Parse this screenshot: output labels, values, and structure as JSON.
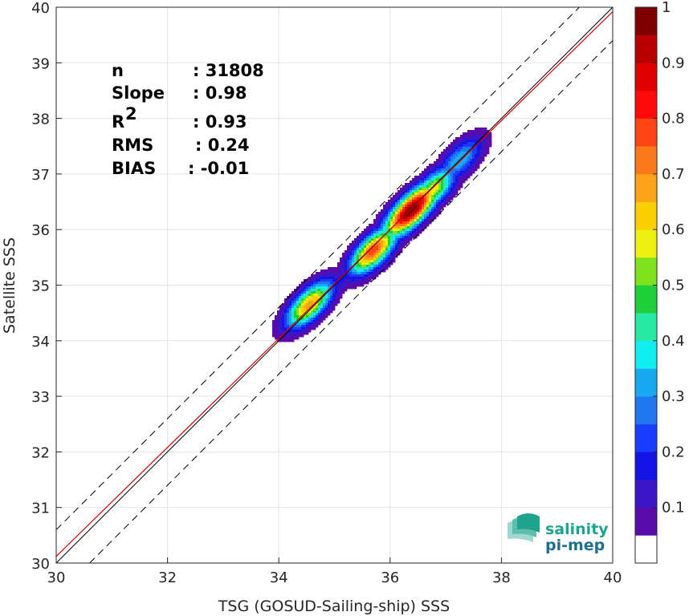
{
  "chart_data": {
    "type": "heatmap",
    "subtype": "density-contour scatter comparison",
    "xlabel": "TSG (GOSUD-Sailing-ship) SSS",
    "ylabel": "Satellite SSS",
    "xlim": [
      30,
      40
    ],
    "ylim": [
      30,
      40
    ],
    "xticks": [
      "30",
      "32",
      "34",
      "36",
      "38",
      "40"
    ],
    "yticks": [
      "30",
      "31",
      "32",
      "33",
      "34",
      "35",
      "36",
      "37",
      "38",
      "39",
      "40"
    ],
    "grid": true,
    "reference_lines": {
      "identity": {
        "slope": 1,
        "intercept": 0,
        "color": "#000000"
      },
      "regression": {
        "slope": 0.98,
        "intercept": 0.72,
        "color": "#d00000"
      },
      "envelope": {
        "offset": 0.6,
        "style": "dashed",
        "color": "#000000"
      }
    },
    "stats": [
      {
        "label": "n",
        "sup": "",
        "value": ": 31808"
      },
      {
        "label": "Slope",
        "sup": "",
        "value": ": 0.98"
      },
      {
        "label": "R",
        "sup": "2",
        "value": ": 0.93"
      },
      {
        "label": "RMS",
        "sup": "",
        "value": ": 0.24"
      },
      {
        "label": "BIAS",
        "sup": "",
        "value": ": -0.01"
      }
    ],
    "density_peaks": [
      {
        "x": 34.55,
        "y": 34.65,
        "density": 0.68
      },
      {
        "x": 35.7,
        "y": 35.62,
        "density": 0.78
      },
      {
        "x": 36.38,
        "y": 36.35,
        "density": 1.0
      },
      {
        "x": 36.75,
        "y": 36.7,
        "density": 0.6
      },
      {
        "x": 37.25,
        "y": 37.25,
        "density": 0.35
      }
    ],
    "colorbar": {
      "range": [
        0,
        1
      ],
      "ticks": [
        "0.1",
        "0.2",
        "0.3",
        "0.4",
        "0.5",
        "0.6",
        "0.7",
        "0.8",
        "0.9",
        "1"
      ],
      "colors": [
        "#ffffff",
        "#5a0aa8",
        "#3a16c8",
        "#1414e6",
        "#1a3cff",
        "#1e78f0",
        "#18aaf0",
        "#10eef2",
        "#28e8a6",
        "#1ecf3a",
        "#7ee21c",
        "#eef014",
        "#fcd000",
        "#fca218",
        "#fc7818",
        "#fc4614",
        "#ff0a0a",
        "#e00000",
        "#b80000",
        "#800000"
      ]
    }
  },
  "logo": {
    "line1": "salinity",
    "line2": "pi-mep",
    "color": "#1fa38c"
  }
}
